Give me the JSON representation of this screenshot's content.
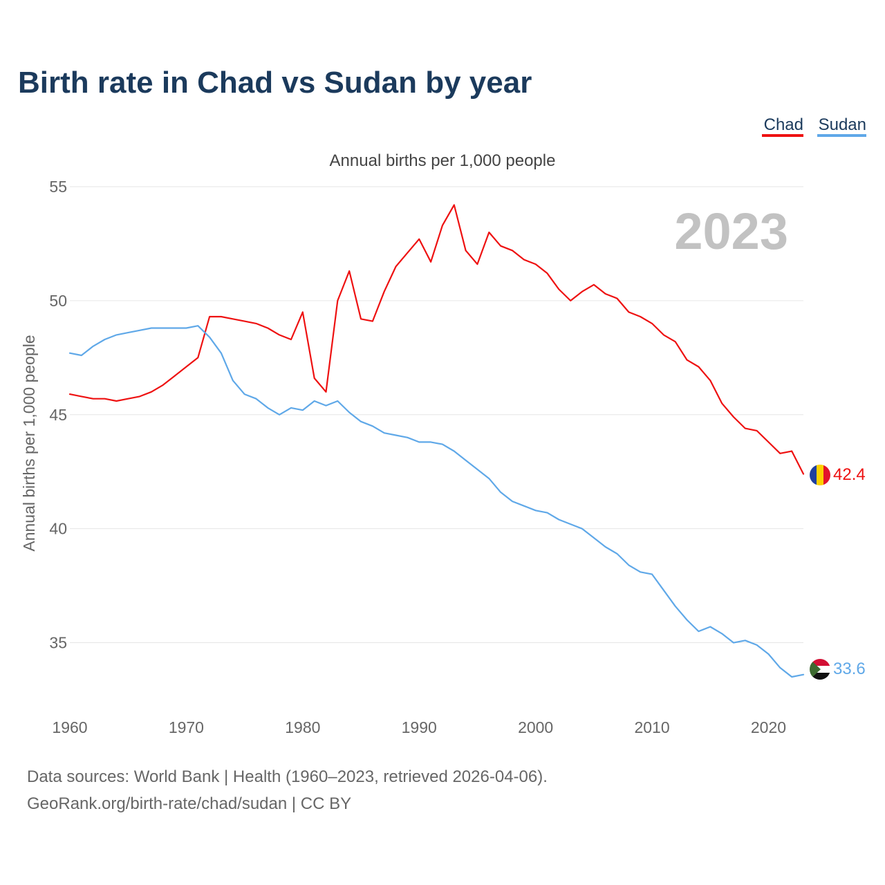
{
  "title": "Birth rate in Chad vs Sudan by year",
  "legend": [
    {
      "label": "Chad",
      "color": "#ee1111"
    },
    {
      "label": "Sudan",
      "color": "#5fa8e8"
    }
  ],
  "footer": {
    "line1": "Data sources: World Bank | Health (1960–2023, retrieved 2026-04-06).",
    "line2": "GeoRank.org/birth-rate/chad/sudan | CC BY"
  },
  "chart_data": {
    "type": "line",
    "title": "Birth rate in Chad vs Sudan by year",
    "subtitle": "Annual births per 1,000 people",
    "xlabel": "",
    "ylabel": "Annual births per 1,000 people",
    "current_year": "2023",
    "xlim": [
      1960,
      2023
    ],
    "ylim": [
      32.5,
      55
    ],
    "x_ticks": [
      1960,
      1970,
      1980,
      1990,
      2000,
      2010,
      2020
    ],
    "y_ticks": [
      35,
      40,
      45,
      50,
      55
    ],
    "grid": true,
    "legend_position": "top-right",
    "x": [
      1960,
      1961,
      1962,
      1963,
      1964,
      1965,
      1966,
      1967,
      1968,
      1969,
      1970,
      1971,
      1972,
      1973,
      1974,
      1975,
      1976,
      1977,
      1978,
      1979,
      1980,
      1981,
      1982,
      1983,
      1984,
      1985,
      1986,
      1987,
      1988,
      1989,
      1990,
      1991,
      1992,
      1993,
      1994,
      1995,
      1996,
      1997,
      1998,
      1999,
      2000,
      2001,
      2002,
      2003,
      2004,
      2005,
      2006,
      2007,
      2008,
      2009,
      2010,
      2011,
      2012,
      2013,
      2014,
      2015,
      2016,
      2017,
      2018,
      2019,
      2020,
      2021,
      2022,
      2023
    ],
    "series": [
      {
        "name": "Chad",
        "color": "#ee1111",
        "end_label": "42.4",
        "values": [
          45.9,
          45.8,
          45.7,
          45.7,
          45.6,
          45.7,
          45.8,
          46.0,
          46.3,
          46.7,
          47.1,
          47.5,
          49.3,
          49.3,
          49.2,
          49.1,
          49.0,
          48.8,
          48.5,
          48.3,
          49.5,
          46.6,
          46.0,
          50.0,
          51.3,
          49.2,
          49.1,
          50.4,
          51.5,
          52.1,
          52.7,
          51.7,
          53.3,
          54.2,
          52.2,
          51.6,
          53.0,
          52.4,
          52.2,
          51.8,
          51.6,
          51.2,
          50.5,
          50.0,
          50.4,
          50.7,
          50.3,
          50.1,
          49.5,
          49.3,
          49.0,
          48.5,
          48.2,
          47.4,
          47.1,
          46.5,
          45.5,
          44.9,
          44.4,
          44.3,
          43.8,
          43.3,
          43.4,
          42.4
        ]
      },
      {
        "name": "Sudan",
        "color": "#5fa8e8",
        "end_label": "33.6",
        "values": [
          47.7,
          47.6,
          48.0,
          48.3,
          48.5,
          48.6,
          48.7,
          48.8,
          48.8,
          48.8,
          48.8,
          48.9,
          48.4,
          47.7,
          46.5,
          45.9,
          45.7,
          45.3,
          45.0,
          45.3,
          45.2,
          45.6,
          45.4,
          45.6,
          45.1,
          44.7,
          44.5,
          44.2,
          44.1,
          44.0,
          43.8,
          43.8,
          43.7,
          43.4,
          43.0,
          42.6,
          42.2,
          41.6,
          41.2,
          41.0,
          40.8,
          40.7,
          40.4,
          40.2,
          40.0,
          39.6,
          39.2,
          38.9,
          38.4,
          38.1,
          38.0,
          37.3,
          36.6,
          36.0,
          35.5,
          35.7,
          35.4,
          35.0,
          35.1,
          34.9,
          34.5,
          33.9,
          33.5,
          33.6
        ]
      }
    ]
  }
}
